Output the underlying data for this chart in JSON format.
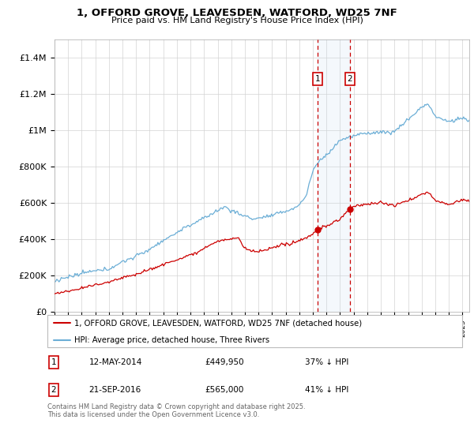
{
  "title1": "1, OFFORD GROVE, LEAVESDEN, WATFORD, WD25 7NF",
  "title2": "Price paid vs. HM Land Registry's House Price Index (HPI)",
  "ylabel_ticks": [
    "£0",
    "£200K",
    "£400K",
    "£600K",
    "£800K",
    "£1M",
    "£1.2M",
    "£1.4M"
  ],
  "ytick_vals": [
    0,
    200000,
    400000,
    600000,
    800000,
    1000000,
    1200000,
    1400000
  ],
  "ylim": [
    0,
    1500000
  ],
  "legend1": "1, OFFORD GROVE, LEAVESDEN, WATFORD, WD25 7NF (detached house)",
  "legend2": "HPI: Average price, detached house, Three Rivers",
  "transaction1_date": "12-MAY-2014",
  "transaction1_price": 449950,
  "transaction1_price_str": "£449,950",
  "transaction1_hpi": "37% ↓ HPI",
  "transaction2_date": "21-SEP-2016",
  "transaction2_price": 565000,
  "transaction2_price_str": "£565,000",
  "transaction2_hpi": "41% ↓ HPI",
  "footnote": "Contains HM Land Registry data © Crown copyright and database right 2025.\nThis data is licensed under the Open Government Licence v3.0.",
  "hpi_color": "#6baed6",
  "price_color": "#cc0000",
  "annotation_bg": "#ddeeff",
  "transaction1_x": 2014.36,
  "transaction2_x": 2016.72,
  "xmin": 1995,
  "xmax": 2025.5,
  "bg_color": "#f0f4f8"
}
